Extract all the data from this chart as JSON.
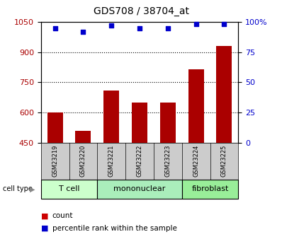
{
  "title": "GDS708 / 38704_at",
  "samples": [
    "GSM23219",
    "GSM23220",
    "GSM23221",
    "GSM23222",
    "GSM23223",
    "GSM23224",
    "GSM23225"
  ],
  "counts": [
    600,
    510,
    710,
    650,
    650,
    815,
    930
  ],
  "percentiles": [
    95,
    92,
    97,
    95,
    95,
    98,
    98
  ],
  "ylim_left": [
    450,
    1050
  ],
  "ylim_right": [
    0,
    100
  ],
  "yticks_left": [
    450,
    600,
    750,
    900,
    1050
  ],
  "yticks_right": [
    0,
    25,
    50,
    75,
    100
  ],
  "ytick_right_labels": [
    "0",
    "25",
    "50",
    "75",
    "100%"
  ],
  "bar_color": "#AA0000",
  "dot_color": "#0000CC",
  "cell_types": [
    {
      "label": "T cell",
      "start": 0,
      "end": 2,
      "color": "#CCFFCC"
    },
    {
      "label": "mononuclear",
      "start": 2,
      "end": 5,
      "color": "#AAEEBB"
    },
    {
      "label": "fibroblast",
      "start": 5,
      "end": 7,
      "color": "#99EE99"
    }
  ],
  "grid_yticks": [
    600,
    750,
    900
  ],
  "background_color": "#FFFFFF",
  "sample_box_color": "#CCCCCC",
  "legend_count_color": "#CC0000",
  "legend_pct_color": "#0000CC",
  "title_fontsize": 10,
  "axis_label_fontsize": 8,
  "sample_fontsize": 6,
  "celltype_fontsize": 8,
  "legend_fontsize": 7.5
}
